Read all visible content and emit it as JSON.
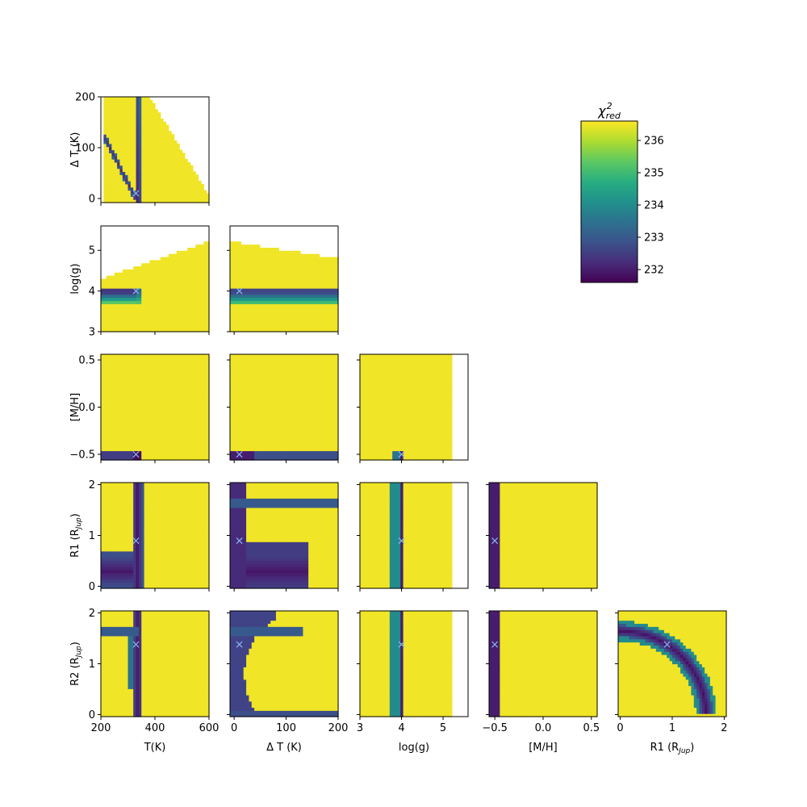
{
  "chart_data": {
    "type": "heatmap",
    "layout": "corner-plot",
    "colormap": "viridis",
    "colorbar": {
      "label": "χ²red",
      "label_base": "χ",
      "label_sup": "2",
      "label_sub": "red",
      "range": [
        231.6,
        236.6
      ],
      "ticks": [
        232,
        233,
        234,
        235,
        236
      ]
    },
    "parameters": [
      {
        "id": "T",
        "label": "T(K)",
        "range": [
          200,
          600
        ],
        "ticks": [
          200,
          400,
          600
        ],
        "best": 330
      },
      {
        "id": "dT",
        "label": "Δ T (K)",
        "range": [
          -8,
          200
        ],
        "ticks": [
          0,
          100,
          200
        ],
        "best": 10
      },
      {
        "id": "logg",
        "label": "log(g)",
        "range": [
          3.0,
          5.6
        ],
        "ticks": [
          3,
          4,
          5
        ],
        "best": 4.0
      },
      {
        "id": "MH",
        "label": "[M/H]",
        "range": [
          -0.56,
          0.56
        ],
        "ticks": [
          -0.5,
          0.0,
          0.5
        ],
        "best": -0.5
      },
      {
        "id": "R1",
        "label": "R1 (RJup)",
        "label_base": "R1 (R",
        "label_sub": "Jup",
        "label_end": ")",
        "range": [
          -0.04,
          2.04
        ],
        "ticks": [
          0,
          1,
          2
        ],
        "best": 0.9
      },
      {
        "id": "R2",
        "label": "R2 (RJup)",
        "label_base": "R2 (R",
        "label_sub": "Jup",
        "label_end": ")",
        "range": [
          -0.04,
          2.04
        ],
        "ticks": [
          0,
          1,
          2
        ],
        "best": 1.38
      }
    ],
    "panels": [
      {
        "row": "dT",
        "col": "T"
      },
      {
        "row": "logg",
        "col": "T"
      },
      {
        "row": "logg",
        "col": "dT"
      },
      {
        "row": "MH",
        "col": "T"
      },
      {
        "row": "MH",
        "col": "dT"
      },
      {
        "row": "MH",
        "col": "logg"
      },
      {
        "row": "R1",
        "col": "T"
      },
      {
        "row": "R1",
        "col": "dT"
      },
      {
        "row": "R1",
        "col": "logg"
      },
      {
        "row": "R1",
        "col": "MH"
      },
      {
        "row": "R2",
        "col": "T"
      },
      {
        "row": "R2",
        "col": "dT"
      },
      {
        "row": "R2",
        "col": "logg"
      },
      {
        "row": "R2",
        "col": "MH"
      },
      {
        "row": "R2",
        "col": "R1"
      }
    ],
    "best_fit_marker": "×",
    "best_fit_color": "#8ab8f0"
  }
}
